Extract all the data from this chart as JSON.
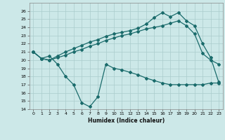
{
  "xlabel": "Humidex (Indice chaleur)",
  "background_color": "#cce8e8",
  "grid_color": "#aacccc",
  "line_color": "#1a6b6b",
  "x_data": [
    0,
    1,
    2,
    3,
    4,
    5,
    6,
    7,
    8,
    9,
    10,
    11,
    12,
    13,
    14,
    15,
    16,
    17,
    18,
    19,
    20,
    21,
    22,
    23
  ],
  "series1": [
    21.0,
    20.2,
    20.0,
    20.3,
    20.6,
    21.0,
    21.3,
    21.7,
    22.0,
    22.4,
    22.7,
    23.0,
    23.2,
    23.5,
    23.8,
    24.0,
    24.2,
    24.5,
    24.8,
    24.2,
    23.2,
    20.8,
    20.0,
    19.5
  ],
  "series2": [
    21.0,
    20.2,
    20.0,
    20.5,
    21.0,
    21.4,
    21.8,
    22.2,
    22.5,
    22.9,
    23.2,
    23.4,
    23.6,
    23.9,
    24.4,
    25.2,
    25.8,
    25.3,
    25.8,
    24.8,
    24.2,
    22.0,
    20.3,
    17.3
  ],
  "series3": [
    21.0,
    20.2,
    20.5,
    19.5,
    18.0,
    17.0,
    14.8,
    14.3,
    15.5,
    19.5,
    19.0,
    18.8,
    18.5,
    18.2,
    17.8,
    17.5,
    17.2,
    17.0,
    17.0,
    17.0,
    17.0,
    17.0,
    17.2,
    17.2
  ],
  "ylim": [
    14,
    27
  ],
  "xlim": [
    -0.5,
    23.5
  ],
  "yticks": [
    14,
    15,
    16,
    17,
    18,
    19,
    20,
    21,
    22,
    23,
    24,
    25,
    26
  ],
  "xticks": [
    0,
    1,
    2,
    3,
    4,
    5,
    6,
    7,
    8,
    9,
    10,
    11,
    12,
    13,
    14,
    15,
    16,
    17,
    18,
    19,
    20,
    21,
    22,
    23
  ]
}
